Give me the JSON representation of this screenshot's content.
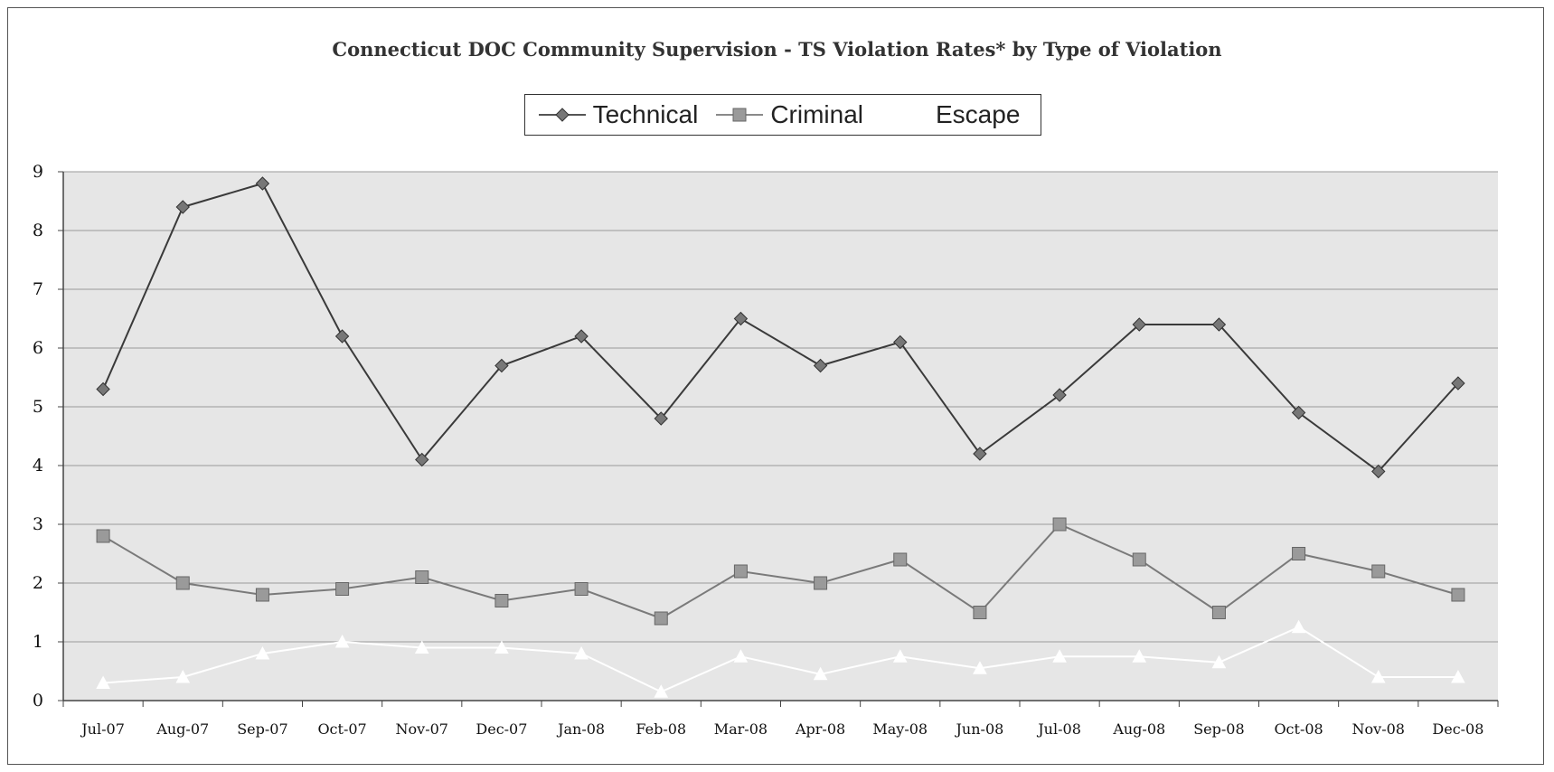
{
  "chart_data": {
    "type": "line",
    "title": "Connecticut DOC Community Supervision - TS Violation Rates* by Type of Violation",
    "xlabel": "",
    "ylabel": "",
    "ylim": [
      0,
      9
    ],
    "yticks": [
      "0",
      "1",
      "2",
      "3",
      "4",
      "5",
      "6",
      "7",
      "8",
      "9"
    ],
    "grid": true,
    "legend_position": "top-center",
    "categories": [
      "Jul-07",
      "Aug-07",
      "Sep-07",
      "Oct-07",
      "Nov-07",
      "Dec-07",
      "Jan-08",
      "Feb-08",
      "Mar-08",
      "Apr-08",
      "May-08",
      "Jun-08",
      "Jul-08",
      "Aug-08",
      "Sep-08",
      "Oct-08",
      "Nov-08",
      "Dec-08"
    ],
    "series": [
      {
        "name": "Technical",
        "marker": "diamond",
        "color": "#555555",
        "values": [
          5.3,
          8.4,
          8.8,
          6.2,
          4.1,
          5.7,
          6.2,
          4.8,
          6.5,
          5.7,
          6.1,
          4.2,
          5.2,
          6.4,
          6.4,
          4.9,
          3.9,
          5.4
        ]
      },
      {
        "name": "Criminal",
        "marker": "square",
        "color": "#8a8a8a",
        "values": [
          2.8,
          2.0,
          1.8,
          1.9,
          2.1,
          1.7,
          1.9,
          1.4,
          2.2,
          2.0,
          2.4,
          1.5,
          3.0,
          2.4,
          1.5,
          2.5,
          2.2,
          1.8
        ]
      },
      {
        "name": "Escape",
        "marker": "triangle",
        "color": "#ffffff",
        "values": [
          0.3,
          0.4,
          0.8,
          1.0,
          0.9,
          0.9,
          0.8,
          0.15,
          0.75,
          0.45,
          0.75,
          0.55,
          0.75,
          0.75,
          0.65,
          1.25,
          0.4,
          0.4
        ]
      }
    ]
  },
  "colors": {
    "plot_background": "#e6e6e6",
    "gridline": "#9a9a9a",
    "axis": "#444444"
  }
}
